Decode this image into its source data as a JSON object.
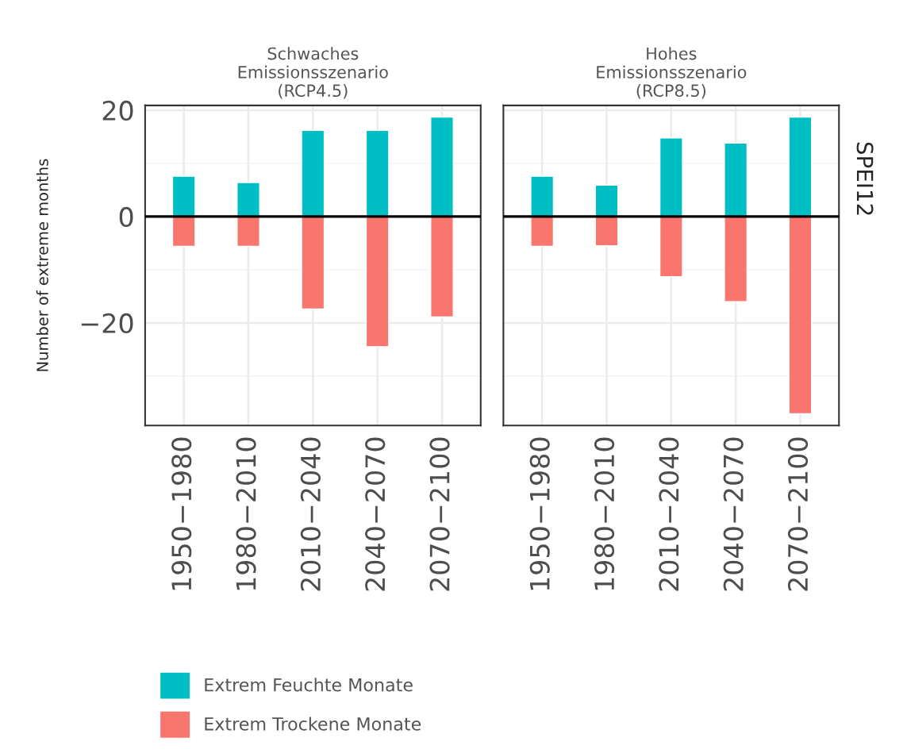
{
  "chart_data": [
    {
      "type": "bar",
      "title": "Schwaches\nEmissionsszenario\n(RCP4.5)",
      "ylabel": "Number of extreme months",
      "categories": [
        "1950−1980",
        "1980−2010",
        "2010−2040",
        "2040−2070",
        "2070−2100"
      ],
      "series": [
        {
          "name": "Extrem Feuchte Monate",
          "color": "#00bfc4",
          "values": [
            7.6,
            6.4,
            16.2,
            16.2,
            18.7
          ]
        },
        {
          "name": "Extrem Trockene Monate",
          "color": "#f8766d",
          "values": [
            -5.6,
            -5.6,
            -17.4,
            -24.5,
            -18.9
          ]
        }
      ],
      "stacked": true,
      "ylim": [
        -39.3,
        20.9
      ],
      "yticks": [
        -20,
        0,
        20
      ],
      "grid": true,
      "legend": "bottom left",
      "ref_lines": [
        {
          "axis": "y",
          "value": 0,
          "color": "#000000"
        }
      ]
    },
    {
      "type": "bar",
      "title": "Hohes\nEmissionsszenario\n(RCP8.5)",
      "categories": [
        "1950−1980",
        "1980−2010",
        "2010−2040",
        "2040−2070",
        "2070−2100"
      ],
      "series": [
        {
          "color": "#00bfc4",
          "values": [
            7.6,
            5.9,
            14.8,
            13.8,
            18.7
          ]
        },
        {
          "color": "#f8766d",
          "values": [
            -5.6,
            -5.5,
            -11.3,
            -16.0,
            -37.1
          ]
        }
      ],
      "stacked": true,
      "ylim": [
        -39.3,
        20.9
      ],
      "yticks": [
        -20,
        0,
        20
      ],
      "grid": true,
      "tick_labels": "x",
      "ref_lines": [
        {
          "axis": "y",
          "value": 0,
          "color": "#000000"
        }
      ],
      "annotations": [
        "SPEI12"
      ]
    }
  ]
}
